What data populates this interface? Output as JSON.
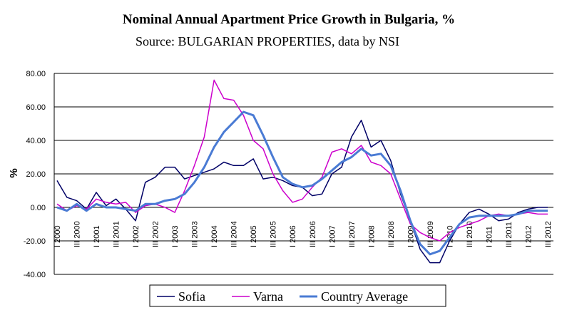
{
  "chart_data": {
    "type": "line",
    "title": "Nominal Annual Apartment Price Growth in Bulgaria, %",
    "subtitle": "Source: BULGARIAN PROPERTIES, data by NSI",
    "y_label": "%",
    "categories": [
      "I 2000",
      null,
      "III 2000",
      null,
      "I 2001",
      null,
      "III 2001",
      null,
      "I 2002",
      null,
      "III 2002",
      null,
      "I 2003",
      null,
      "III 2003",
      null,
      "I 2004",
      null,
      "III 2004",
      null,
      "I 2005",
      null,
      "III 2005",
      null,
      "I 2006",
      null,
      "III 2006",
      null,
      "I 2007",
      null,
      "III 2007",
      null,
      "I 2008",
      null,
      "III 2008",
      null,
      "I 2009",
      null,
      "III 2009",
      null,
      "I 2010",
      null,
      "III 2010",
      null,
      "I 2011",
      null,
      "III 2011",
      null,
      "I 2012",
      null,
      "III 2012"
    ],
    "series": [
      {
        "name": "Sofia",
        "color": "#000066",
        "width": 1.5,
        "values": [
          16,
          6,
          4,
          -1,
          9,
          1,
          5,
          -1,
          -8,
          15,
          18,
          24,
          24,
          17,
          19,
          21,
          23,
          27,
          25,
          25,
          29,
          17,
          18,
          16,
          13,
          12,
          7,
          8,
          20,
          24,
          42,
          52,
          36,
          40,
          28,
          8,
          -8,
          -25,
          -33,
          -33,
          -20,
          -10,
          -3,
          -1,
          -4,
          -8,
          -7,
          -3,
          -1,
          0,
          0
        ]
      },
      {
        "name": "Varna",
        "color": "#cc00cc",
        "width": 1.5,
        "values": [
          2,
          -2,
          1,
          -1,
          5,
          3,
          2,
          3,
          -3,
          1,
          2,
          0,
          -3,
          10,
          25,
          42,
          76,
          65,
          64,
          55,
          40,
          35,
          20,
          10,
          3,
          5,
          12,
          18,
          33,
          35,
          32,
          37,
          27,
          25,
          20,
          5,
          -10,
          -15,
          -18,
          -20,
          -15,
          -12,
          -10,
          -8,
          -5,
          -4,
          -5,
          -4,
          -3,
          -4,
          -4
        ]
      },
      {
        "name": "Country Average",
        "color": "#4a7bd4",
        "width": 3,
        "values": [
          0,
          -2,
          2,
          -2,
          2,
          0,
          0,
          -1,
          -2,
          2,
          2,
          4,
          5,
          8,
          15,
          24,
          36,
          45,
          51,
          57,
          55,
          43,
          30,
          18,
          14,
          12,
          13,
          17,
          22,
          27,
          30,
          35,
          31,
          32,
          25,
          10,
          -8,
          -22,
          -28,
          -26,
          -18,
          -10,
          -6,
          -5,
          -5,
          -5,
          -5,
          -4,
          -2,
          -2,
          -2
        ]
      }
    ],
    "ylim": [
      -40,
      80
    ],
    "yticks": [
      {
        "value": -40,
        "label": "-40.00"
      },
      {
        "value": -20,
        "label": "-20.00"
      },
      {
        "value": 0,
        "label": "0.00"
      },
      {
        "value": 20,
        "label": "20.00"
      },
      {
        "value": 40,
        "label": "40.00"
      },
      {
        "value": 60,
        "label": "60.00"
      },
      {
        "value": 80,
        "label": "80.00"
      }
    ],
    "grid": true,
    "legend": "bottom"
  }
}
